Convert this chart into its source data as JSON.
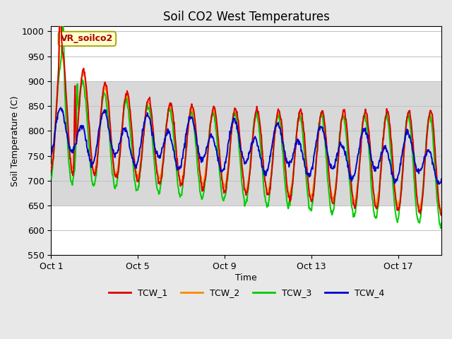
{
  "title": "Soil CO2 West Temperatures",
  "xlabel": "Time",
  "ylabel": "Soil Temperature (C)",
  "ylim": [
    550,
    1010
  ],
  "xlim_days": [
    0,
    18.0
  ],
  "x_ticks_days": [
    0,
    4,
    8,
    12,
    16
  ],
  "x_tick_labels": [
    "Oct 1",
    "Oct 5",
    "Oct 9",
    "Oct 13",
    "Oct 17"
  ],
  "colors": {
    "TCW_1": "#dd0000",
    "TCW_2": "#ff8800",
    "TCW_3": "#00cc00",
    "TCW_4": "#0000cc"
  },
  "annotation_label": "VR_soilco2",
  "annotation_box_color": "#ffffcc",
  "annotation_border_color": "#999900",
  "shaded_band": [
    650,
    900
  ],
  "plot_bg_color": "#ffffff",
  "fig_bg_color": "#e8e8e8",
  "linewidth": 1.4,
  "yticks": [
    550,
    600,
    650,
    700,
    750,
    800,
    850,
    900,
    950,
    1000
  ]
}
